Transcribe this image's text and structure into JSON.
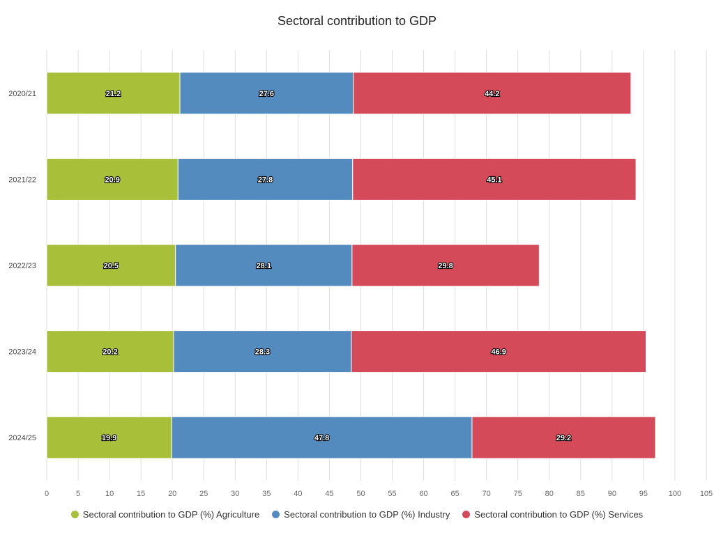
{
  "chart_data": {
    "type": "bar",
    "orientation": "horizontal",
    "stacked": true,
    "title": "Sectoral contribution to GDP",
    "categories": [
      "2020/21",
      "2021/22",
      "2022/23",
      "2023/24",
      "2024/25"
    ],
    "series": [
      {
        "name": "Sectoral contribution to GDP (%) Agriculture",
        "color": "#a8bf3a",
        "values": [
          21.2,
          20.9,
          20.5,
          20.2,
          19.9
        ]
      },
      {
        "name": "Sectoral contribution to GDP (%) Industry",
        "color": "#548bbf",
        "values": [
          27.6,
          27.8,
          28.1,
          28.3,
          47.8
        ]
      },
      {
        "name": "Sectoral contribution to GDP (%) Services",
        "color": "#d44a59",
        "values": [
          44.2,
          45.1,
          29.8,
          46.9,
          29.2
        ]
      }
    ],
    "xlim": [
      0,
      105
    ],
    "xticks": [
      0,
      5,
      10,
      15,
      20,
      25,
      30,
      35,
      40,
      45,
      50,
      55,
      60,
      65,
      70,
      75,
      80,
      85,
      90,
      95,
      100,
      105
    ],
    "grid": true,
    "legend_position": "bottom"
  }
}
